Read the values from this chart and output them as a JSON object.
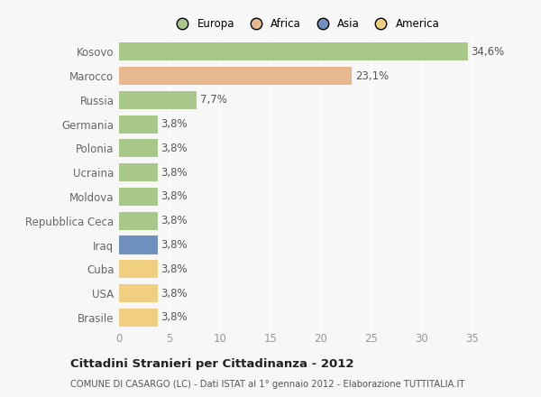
{
  "countries": [
    "Kosovo",
    "Marocco",
    "Russia",
    "Germania",
    "Polonia",
    "Ucraina",
    "Moldova",
    "Repubblica Ceca",
    "Iraq",
    "Cuba",
    "USA",
    "Brasile"
  ],
  "values": [
    34.6,
    23.1,
    7.7,
    3.8,
    3.8,
    3.8,
    3.8,
    3.8,
    3.8,
    3.8,
    3.8,
    3.8
  ],
  "labels": [
    "34,6%",
    "23,1%",
    "7,7%",
    "3,8%",
    "3,8%",
    "3,8%",
    "3,8%",
    "3,8%",
    "3,8%",
    "3,8%",
    "3,8%",
    "3,8%"
  ],
  "colors": [
    "#a8c88a",
    "#e8b990",
    "#a8c88a",
    "#a8c88a",
    "#a8c88a",
    "#a8c88a",
    "#a8c88a",
    "#a8c88a",
    "#7090c0",
    "#f0d080",
    "#f0d080",
    "#f0d080"
  ],
  "legend": [
    {
      "label": "Europa",
      "color": "#a8c88a"
    },
    {
      "label": "Africa",
      "color": "#e8b990"
    },
    {
      "label": "Asia",
      "color": "#7090c0"
    },
    {
      "label": "America",
      "color": "#f0d080"
    }
  ],
  "xlim": [
    0,
    37
  ],
  "xticks": [
    0,
    5,
    10,
    15,
    20,
    25,
    30,
    35
  ],
  "title": "Cittadini Stranieri per Cittadinanza - 2012",
  "subtitle": "COMUNE DI CASARGO (LC) - Dati ISTAT al 1° gennaio 2012 - Elaborazione TUTTITALIA.IT",
  "bg_color": "#f7f7f7",
  "grid_color": "#ffffff",
  "bar_height": 0.75,
  "label_fontsize": 8.5,
  "ytick_fontsize": 8.5
}
